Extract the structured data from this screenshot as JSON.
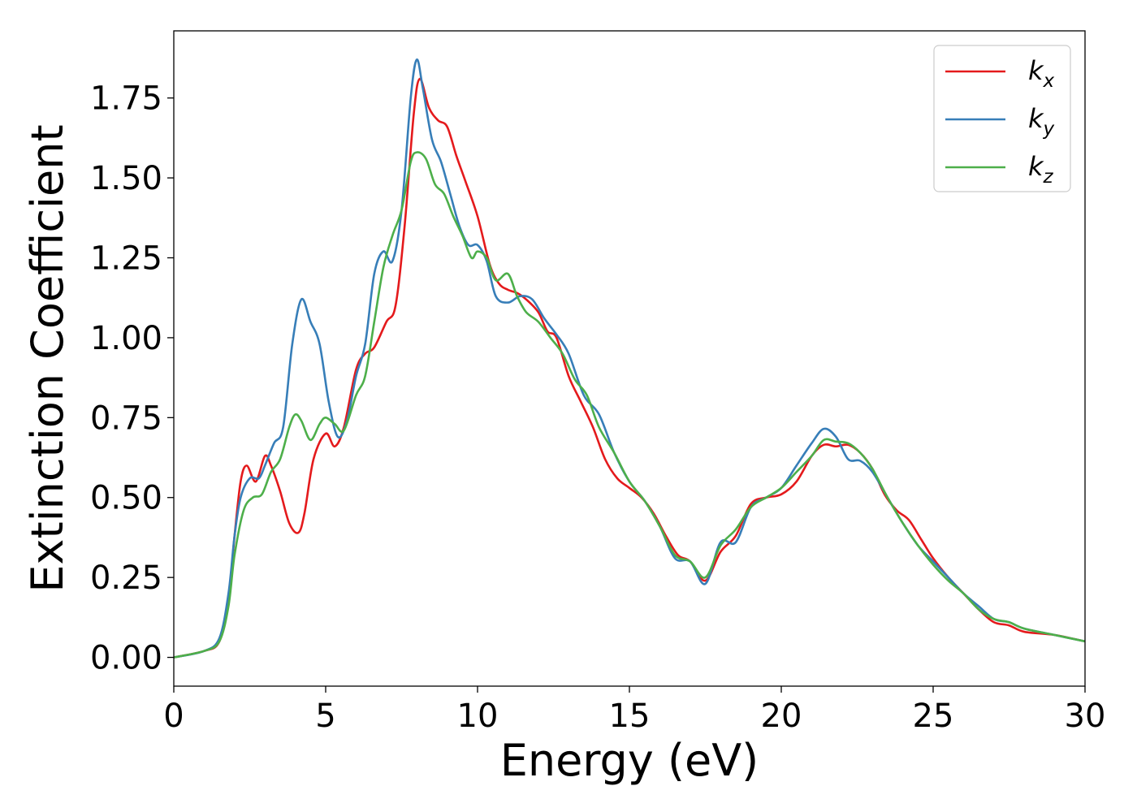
{
  "chart_data": {
    "type": "line",
    "title": "",
    "xlabel": "Energy (eV)",
    "ylabel": "Extinction Coefficient",
    "xlim": [
      0,
      30
    ],
    "ylim": [
      -0.09,
      1.96
    ],
    "xticks": [
      0,
      5,
      10,
      15,
      20,
      25,
      30
    ],
    "xtick_labels": [
      "0",
      "5",
      "10",
      "15",
      "20",
      "25",
      "30"
    ],
    "yticks": [
      0,
      0.25,
      0.5,
      0.75,
      1.0,
      1.25,
      1.5,
      1.75
    ],
    "ytick_labels": [
      "0.00",
      "0.25",
      "0.50",
      "0.75",
      "1.00",
      "1.25",
      "1.50",
      "1.75"
    ],
    "grid": false,
    "legend_position": "top-right",
    "series": [
      {
        "name": "k_x",
        "label_base": "k",
        "label_sub": "x",
        "color": "#e41a1c",
        "x": [
          0,
          1,
          1.5,
          1.8,
          2.0,
          2.2,
          2.4,
          2.7,
          3.0,
          3.2,
          3.5,
          3.8,
          4.1,
          4.3,
          4.6,
          5.0,
          5.3,
          5.6,
          6.0,
          6.3,
          6.6,
          7.0,
          7.3,
          7.6,
          7.9,
          8.1,
          8.4,
          8.7,
          9.0,
          9.3,
          9.6,
          10.0,
          10.4,
          10.7,
          11.0,
          11.3,
          11.6,
          12.0,
          12.3,
          12.6,
          13.0,
          13.4,
          13.8,
          14.2,
          14.6,
          15.0,
          15.4,
          15.8,
          16.2,
          16.6,
          17.0,
          17.5,
          18.0,
          18.5,
          19.0,
          19.5,
          20.0,
          20.5,
          21.0,
          21.4,
          21.8,
          22.2,
          22.6,
          23.0,
          23.4,
          23.8,
          24.2,
          24.6,
          25.0,
          25.5,
          26.0,
          26.5,
          27.0,
          27.5,
          28.0,
          29.0,
          30.0
        ],
        "y": [
          0,
          0.02,
          0.05,
          0.18,
          0.38,
          0.55,
          0.6,
          0.55,
          0.63,
          0.6,
          0.52,
          0.42,
          0.39,
          0.45,
          0.62,
          0.7,
          0.66,
          0.72,
          0.9,
          0.95,
          0.97,
          1.05,
          1.1,
          1.35,
          1.7,
          1.81,
          1.72,
          1.68,
          1.66,
          1.57,
          1.49,
          1.38,
          1.23,
          1.17,
          1.15,
          1.14,
          1.12,
          1.08,
          1.02,
          1.0,
          0.88,
          0.8,
          0.72,
          0.62,
          0.56,
          0.53,
          0.5,
          0.45,
          0.38,
          0.32,
          0.3,
          0.24,
          0.33,
          0.38,
          0.48,
          0.5,
          0.51,
          0.55,
          0.63,
          0.665,
          0.66,
          0.665,
          0.64,
          0.59,
          0.51,
          0.46,
          0.43,
          0.37,
          0.31,
          0.25,
          0.2,
          0.15,
          0.11,
          0.1,
          0.08,
          0.07,
          0.05
        ]
      },
      {
        "name": "k_y",
        "label_base": "k",
        "label_sub": "y",
        "color": "#377eb8",
        "x": [
          0,
          1,
          1.5,
          1.8,
          2.0,
          2.2,
          2.5,
          2.8,
          3.0,
          3.3,
          3.6,
          3.9,
          4.2,
          4.5,
          4.8,
          5.1,
          5.4,
          5.7,
          6.0,
          6.3,
          6.6,
          6.9,
          7.2,
          7.5,
          7.8,
          8.0,
          8.2,
          8.5,
          8.8,
          9.1,
          9.4,
          9.7,
          10.0,
          10.3,
          10.6,
          11.0,
          11.4,
          11.8,
          12.2,
          12.6,
          13.0,
          13.5,
          14.0,
          14.5,
          15.0,
          15.5,
          16.0,
          16.5,
          17.0,
          17.5,
          18.0,
          18.5,
          19.0,
          19.5,
          20.0,
          20.5,
          21.0,
          21.4,
          21.8,
          22.2,
          22.6,
          23.0,
          23.5,
          24.0,
          24.5,
          25.0,
          25.5,
          26.0,
          26.5,
          27.0,
          27.5,
          28.0,
          29.0,
          30.0
        ],
        "y": [
          0,
          0.02,
          0.06,
          0.2,
          0.38,
          0.5,
          0.56,
          0.56,
          0.6,
          0.67,
          0.72,
          0.98,
          1.12,
          1.05,
          0.98,
          0.8,
          0.69,
          0.74,
          0.88,
          0.98,
          1.2,
          1.27,
          1.24,
          1.4,
          1.75,
          1.87,
          1.78,
          1.62,
          1.55,
          1.45,
          1.35,
          1.29,
          1.29,
          1.24,
          1.13,
          1.11,
          1.13,
          1.12,
          1.06,
          1.01,
          0.95,
          0.82,
          0.76,
          0.64,
          0.55,
          0.49,
          0.41,
          0.31,
          0.3,
          0.23,
          0.36,
          0.36,
          0.47,
          0.5,
          0.53,
          0.6,
          0.67,
          0.715,
          0.69,
          0.62,
          0.615,
          0.58,
          0.5,
          0.42,
          0.35,
          0.3,
          0.25,
          0.2,
          0.16,
          0.12,
          0.11,
          0.09,
          0.07,
          0.05
        ]
      },
      {
        "name": "k_z",
        "label_base": "k",
        "label_sub": "z",
        "color": "#4daf4a",
        "x": [
          0,
          1,
          1.5,
          1.8,
          2.0,
          2.3,
          2.6,
          2.9,
          3.2,
          3.5,
          3.8,
          4.0,
          4.2,
          4.5,
          4.8,
          5.0,
          5.3,
          5.6,
          6.0,
          6.3,
          6.6,
          6.9,
          7.2,
          7.5,
          7.8,
          8.0,
          8.3,
          8.6,
          8.9,
          9.2,
          9.5,
          9.8,
          10.0,
          10.3,
          10.6,
          11.0,
          11.3,
          11.6,
          12.0,
          12.4,
          12.8,
          13.2,
          13.6,
          14.0,
          14.5,
          15.0,
          15.5,
          16.0,
          16.5,
          17.0,
          17.5,
          18.0,
          18.5,
          19.0,
          19.5,
          20.0,
          20.5,
          21.0,
          21.4,
          21.8,
          22.2,
          22.6,
          23.0,
          23.5,
          24.0,
          24.5,
          25.0,
          25.5,
          26.0,
          26.5,
          27.0,
          27.5,
          28.0,
          29.0,
          30.0
        ],
        "y": [
          0,
          0.02,
          0.05,
          0.16,
          0.32,
          0.46,
          0.5,
          0.51,
          0.58,
          0.62,
          0.72,
          0.76,
          0.74,
          0.68,
          0.73,
          0.75,
          0.73,
          0.71,
          0.82,
          0.88,
          1.05,
          1.22,
          1.32,
          1.4,
          1.55,
          1.58,
          1.56,
          1.48,
          1.45,
          1.38,
          1.32,
          1.25,
          1.27,
          1.25,
          1.18,
          1.2,
          1.13,
          1.08,
          1.05,
          1.0,
          0.95,
          0.87,
          0.82,
          0.72,
          0.64,
          0.55,
          0.49,
          0.41,
          0.32,
          0.3,
          0.25,
          0.35,
          0.4,
          0.47,
          0.5,
          0.53,
          0.58,
          0.63,
          0.68,
          0.675,
          0.67,
          0.64,
          0.59,
          0.5,
          0.42,
          0.35,
          0.29,
          0.24,
          0.2,
          0.15,
          0.12,
          0.11,
          0.09,
          0.07,
          0.05
        ]
      }
    ]
  }
}
